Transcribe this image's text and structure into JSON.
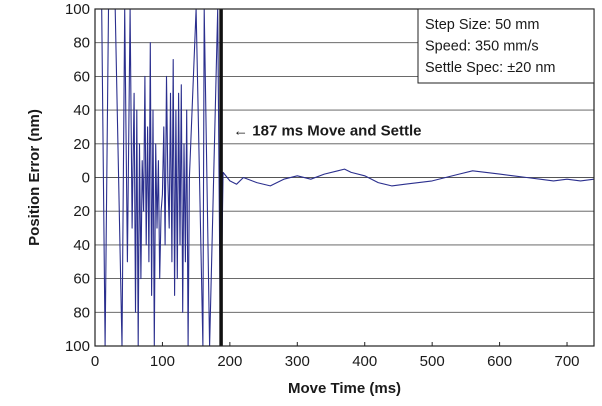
{
  "chart_data": {
    "type": "line",
    "xlabel": "Move Time (ms)",
    "ylabel": "Position Error (nm)",
    "xlim": [
      0,
      740
    ],
    "ylim": [
      -100,
      100
    ],
    "x_ticks": [
      0,
      100,
      200,
      300,
      400,
      500,
      600,
      700
    ],
    "x_tick_labels": [
      "0",
      "100",
      "200",
      "300",
      "400",
      "500",
      "600",
      "700"
    ],
    "y_ticks": [
      100,
      80,
      60,
      40,
      20,
      0,
      -20,
      -40,
      -60,
      -80,
      -100
    ],
    "y_tick_labels": [
      "100",
      "80",
      "60",
      "40",
      "20",
      "0",
      "20",
      "40",
      "60",
      "80",
      "100"
    ],
    "grid": "horizontal",
    "legend_placement": "top-right",
    "legend": [
      "Step Size: 50 mm",
      "Speed: 350 mm/s",
      "Settle Spec: ±20 nm"
    ],
    "annotation": {
      "text": "← 187 ms Move and Settle",
      "marker_x": 187
    },
    "series": [
      {
        "color": "#2b2f8e",
        "x": [
          0,
          10,
          15,
          20,
          30,
          40,
          44,
          48,
          52,
          55,
          58,
          60,
          62,
          64,
          66,
          68,
          70,
          72,
          74,
          76,
          78,
          80,
          82,
          84,
          86,
          88,
          90,
          92,
          94,
          96,
          98,
          100,
          102,
          104,
          106,
          108,
          110,
          112,
          114,
          116,
          118,
          120,
          122,
          124,
          126,
          128,
          130,
          132,
          134,
          136,
          138,
          140,
          150,
          160,
          162,
          170,
          182,
          186,
          190,
          200,
          210,
          220,
          240,
          260,
          280,
          300,
          320,
          340,
          360,
          370,
          380,
          400,
          420,
          440,
          460,
          480,
          500,
          520,
          540,
          560,
          580,
          600,
          620,
          640,
          660,
          680,
          700,
          720,
          740
        ],
        "y": [
          100,
          100,
          -100,
          100,
          100,
          -100,
          100,
          -50,
          100,
          -30,
          50,
          -80,
          40,
          -100,
          20,
          -60,
          10,
          -20,
          60,
          -40,
          30,
          -50,
          80,
          -70,
          40,
          -100,
          20,
          -30,
          10,
          -60,
          -20,
          -10,
          30,
          -40,
          60,
          0,
          -30,
          50,
          -50,
          70,
          -70,
          40,
          -60,
          50,
          -40,
          55,
          -80,
          20,
          -50,
          40,
          -100,
          0,
          100,
          -100,
          100,
          -100,
          100,
          -100,
          3,
          -2,
          -4,
          0,
          -3,
          -5,
          -1,
          1,
          -1,
          2,
          4,
          5,
          3,
          1,
          -3,
          -5,
          -4,
          -3,
          -2,
          0,
          2,
          4,
          3,
          2,
          1,
          0,
          -1,
          -2,
          -1,
          -2,
          -1
        ]
      }
    ]
  }
}
